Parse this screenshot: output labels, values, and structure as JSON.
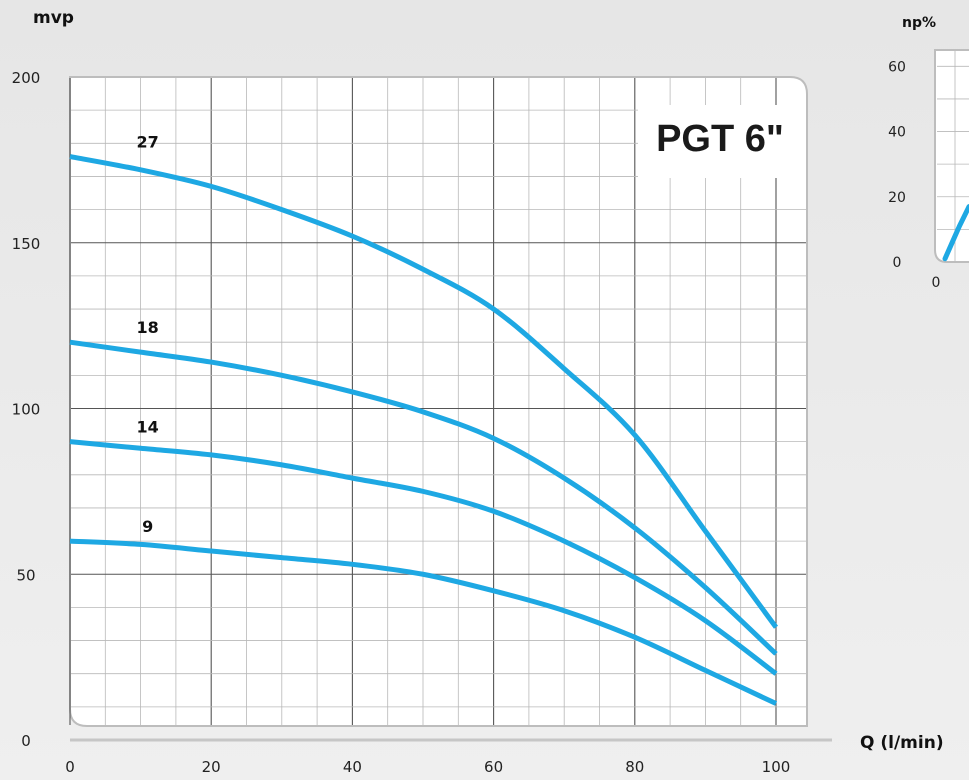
{
  "chart_data": [
    {
      "type": "line",
      "title": "PGT 6\"",
      "xlabel": "Q (l/min)",
      "ylabel": "mvp",
      "xlim": [
        0,
        100
      ],
      "ylim": [
        0,
        200
      ],
      "x_ticks": [
        "0",
        "20",
        "40",
        "60",
        "80",
        "100"
      ],
      "y_ticks": [
        "0",
        "50",
        "100",
        "150",
        "200"
      ],
      "grid": true,
      "line_color": "#1ea8e3",
      "series": [
        {
          "name": "27",
          "x": [
            0,
            10,
            20,
            30,
            40,
            50,
            60,
            70,
            80,
            90,
            100
          ],
          "y": [
            176,
            172,
            167,
            160,
            152,
            142,
            130,
            112,
            92,
            63,
            34
          ]
        },
        {
          "name": "18",
          "x": [
            0,
            10,
            20,
            30,
            40,
            50,
            60,
            70,
            80,
            90,
            100
          ],
          "y": [
            120,
            117,
            114,
            110,
            105,
            99,
            91,
            79,
            64,
            46,
            26
          ]
        },
        {
          "name": "14",
          "x": [
            0,
            10,
            20,
            30,
            40,
            50,
            60,
            70,
            80,
            90,
            100
          ],
          "y": [
            90,
            88,
            86,
            83,
            79,
            75,
            69,
            60,
            49,
            36,
            20
          ]
        },
        {
          "name": "9",
          "x": [
            0,
            10,
            20,
            30,
            40,
            50,
            60,
            70,
            80,
            90,
            100
          ],
          "y": [
            60,
            59,
            57,
            55,
            53,
            50,
            45,
            39,
            31,
            21,
            11
          ]
        }
      ]
    },
    {
      "type": "line",
      "title": "",
      "ylabel": "np%",
      "x_ticks": [
        "0"
      ],
      "y_ticks": [
        "0",
        "20",
        "40",
        "60"
      ],
      "ylim": [
        0,
        65
      ],
      "grid": true,
      "line_color": "#1ea8e3",
      "series": [
        {
          "x": [
            0,
            3,
            6,
            10
          ],
          "y": [
            1,
            6,
            11,
            17
          ]
        }
      ]
    }
  ]
}
